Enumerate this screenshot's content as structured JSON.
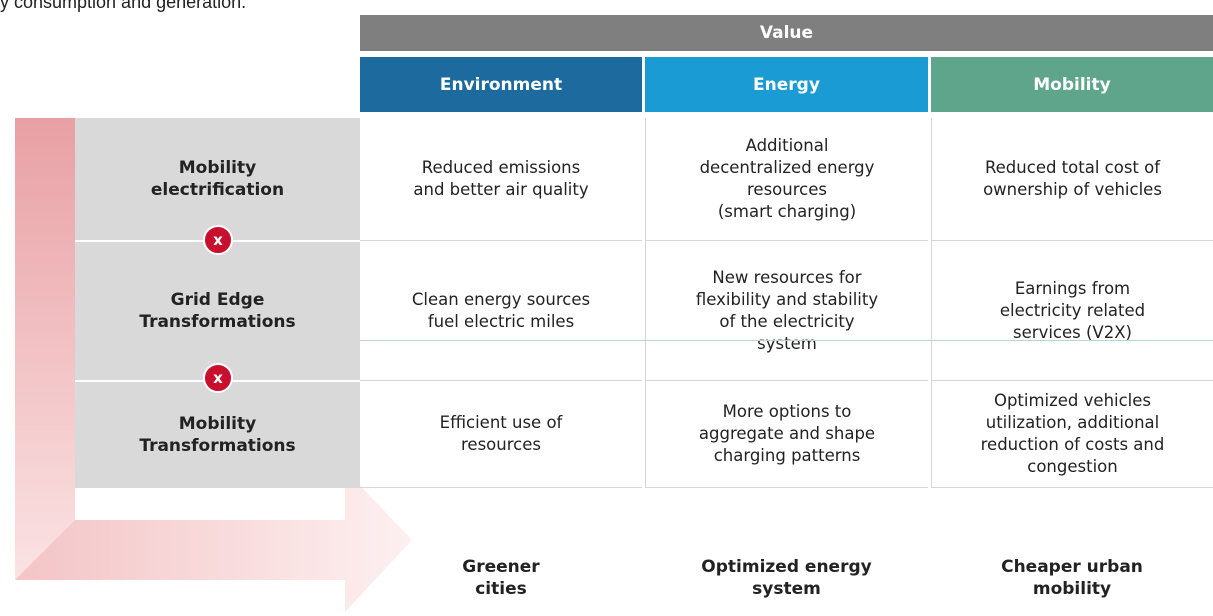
{
  "top_text": "y consumption and generation.",
  "header": {
    "value": "Value"
  },
  "columns": [
    "Environment",
    "Energy",
    "Mobility"
  ],
  "rows": [
    {
      "label": [
        "Mobility",
        "electrification"
      ],
      "cells": [
        [
          "Reduced emissions",
          "and better air quality"
        ],
        [
          "Additional",
          "decentralized energy",
          "resources",
          "(smart charging)"
        ],
        [
          "Reduced total cost of",
          "ownership of vehicles"
        ]
      ]
    },
    {
      "label": [
        "Grid Edge",
        "Transformations"
      ],
      "cells": [
        [
          "Clean energy sources",
          "fuel electric miles"
        ],
        [
          "New resources for",
          "flexibility and stability",
          "of the electricity",
          "system"
        ],
        [
          "Earnings from",
          "electricity related",
          "services (V2X)"
        ]
      ]
    },
    {
      "label": [
        "Mobility",
        "Transformations"
      ],
      "cells": [
        [
          "Efficient use of",
          "resources"
        ],
        [
          "More options to",
          "aggregate and shape",
          "charging patterns"
        ],
        [
          "Optimized vehicles",
          "utilization, additional",
          "reduction of costs and",
          "congestion"
        ]
      ]
    }
  ],
  "connector": "x",
  "outcomes": [
    [
      "Greener",
      "cities"
    ],
    [
      "Optimized energy",
      "system"
    ],
    [
      "Cheaper urban",
      "mobility"
    ]
  ]
}
